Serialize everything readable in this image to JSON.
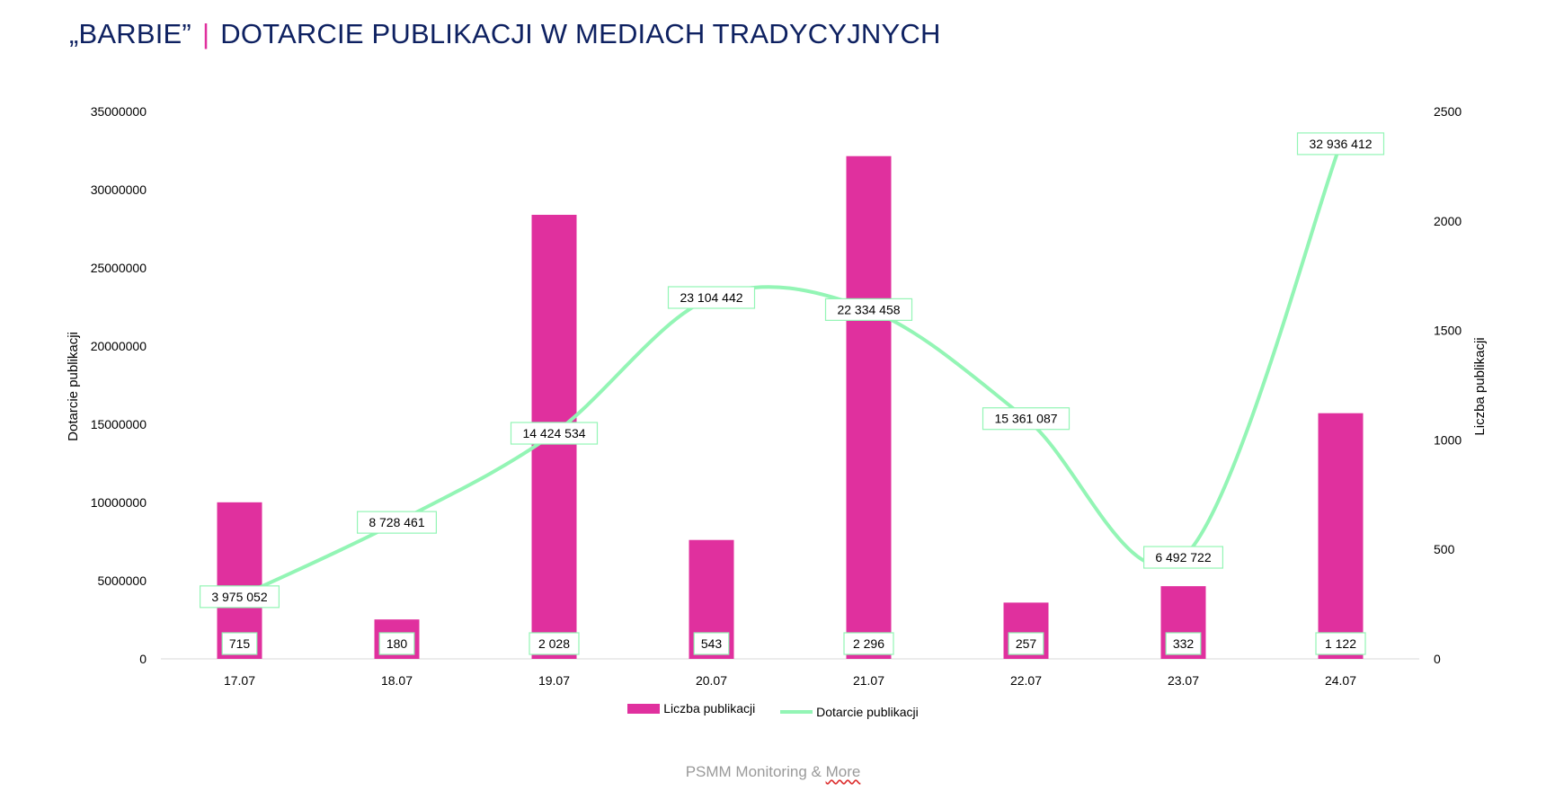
{
  "title": {
    "quote": "„BARBIE”",
    "separator": "|",
    "main": "DOTARCIE PUBLIKACJI W MEDIACH TRADYCYJNYCH"
  },
  "colors": {
    "title": "#0E2161",
    "accent": "#E0309E",
    "bars": "#E0309E",
    "line": "#93F5B5"
  },
  "chart_data": {
    "type": "bar+line",
    "categories": [
      "17.07",
      "18.07",
      "19.07",
      "20.07",
      "21.07",
      "22.07",
      "23.07",
      "24.07"
    ],
    "series": [
      {
        "name": "Liczba publikacji",
        "type": "bar",
        "axis": "right",
        "values": [
          715,
          180,
          2028,
          543,
          2296,
          257,
          332,
          1122
        ],
        "labels": [
          "715",
          "180",
          "2 028",
          "543",
          "2 296",
          "257",
          "332",
          "1 122"
        ]
      },
      {
        "name": "Dotarcie publikacji",
        "type": "line",
        "axis": "left",
        "smooth": true,
        "values": [
          3975052,
          8728461,
          14424534,
          23104442,
          22334458,
          15361087,
          6492722,
          32936412
        ],
        "labels": [
          "3 975 052",
          "8 728 461",
          "14 424 534",
          "23 104 442",
          "22 334 458",
          "15 361 087",
          "6 492 722",
          "32 936 412"
        ]
      }
    ],
    "y_left": {
      "label": "Dotarcie publikacji",
      "range": [
        0,
        35000000
      ],
      "ticks": [
        "0",
        "5000000",
        "10000000",
        "15000000",
        "20000000",
        "25000000",
        "30000000",
        "35000000"
      ],
      "tick_labels": [
        "0",
        "5000000",
        "10000000",
        "15000000",
        "20000000",
        "25000000",
        "30000000",
        "35000000"
      ]
    },
    "y_right": {
      "label": "Liczba publikacji",
      "range": [
        0,
        2500
      ],
      "tick_labels": [
        "0",
        "500",
        "1000",
        "1500",
        "2000",
        "2500"
      ]
    },
    "legend": {
      "position": "bottom",
      "entries": [
        "Liczba publikacji",
        "Dotarcie publikacji"
      ]
    },
    "grid": false
  },
  "footer": {
    "text": "PSMM Monitoring & ",
    "more": "More"
  }
}
